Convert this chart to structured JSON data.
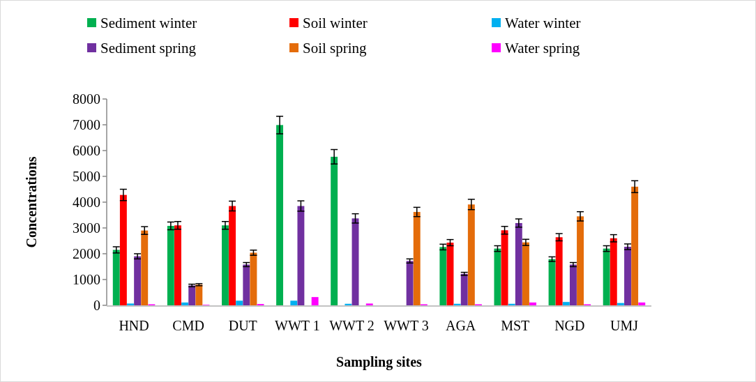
{
  "chart_data": {
    "type": "bar",
    "xlabel": "Sampling sites",
    "ylabel": "Concentrations",
    "categories": [
      "HND",
      "CMD",
      "DUT",
      "WWT 1",
      "WWT 2",
      "WWT 3",
      "AGA",
      "MST",
      "NGD",
      "UMJ"
    ],
    "ylim": [
      0,
      8000
    ],
    "yticks": [
      0,
      1000,
      2000,
      3000,
      4000,
      5000,
      6000,
      7000,
      8000
    ],
    "legend": "top",
    "grid": false,
    "series": [
      {
        "name": "Sediment winter",
        "color": "#00b050",
        "values": [
          2150,
          3080,
          3100,
          6990,
          5760,
          null,
          2260,
          2200,
          1790,
          2200
        ],
        "errors": [
          120,
          150,
          150,
          340,
          280,
          null,
          110,
          110,
          90,
          110
        ]
      },
      {
        "name": "Soil winter",
        "color": "#ff0000",
        "values": [
          4280,
          3100,
          3850,
          null,
          null,
          null,
          2430,
          2910,
          2640,
          2600
        ],
        "errors": [
          220,
          150,
          190,
          null,
          null,
          null,
          120,
          150,
          140,
          140
        ]
      },
      {
        "name": "Water winter",
        "color": "#00b0f0",
        "values": [
          70,
          110,
          180,
          180,
          60,
          null,
          60,
          60,
          130,
          90
        ]
      },
      {
        "name": "Sediment spring",
        "color": "#7030a0",
        "values": [
          1900,
          770,
          1580,
          3850,
          3370,
          1720,
          1220,
          3190,
          1580,
          2270
        ],
        "errors": [
          100,
          50,
          80,
          200,
          180,
          80,
          60,
          160,
          80,
          110
        ]
      },
      {
        "name": "Soil spring",
        "color": "#e46c0a",
        "values": [
          2900,
          800,
          2040,
          null,
          null,
          3620,
          3910,
          2440,
          3450,
          4600
        ],
        "errors": [
          150,
          40,
          100,
          null,
          null,
          180,
          200,
          120,
          180,
          230
        ]
      },
      {
        "name": "Water spring",
        "color": "#ff00ff",
        "values": [
          40,
          20,
          50,
          320,
          70,
          40,
          40,
          110,
          40,
          110
        ]
      }
    ]
  }
}
